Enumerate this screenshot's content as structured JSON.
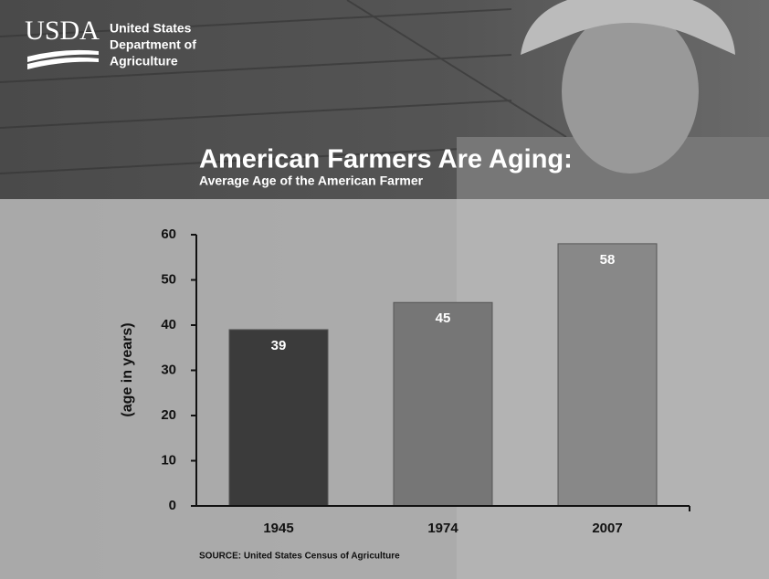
{
  "header": {
    "logo": "USDA",
    "agency": [
      "United States",
      "Department of",
      "Agriculture"
    ]
  },
  "chart_data": {
    "type": "bar",
    "title": "American Farmers Are Aging:",
    "subtitle": "Average Age of the American Farmer",
    "y_label": "(age in years)",
    "source": "SOURCE: United States Census of Agriculture",
    "categories": [
      "1945",
      "1974",
      "2007"
    ],
    "values": [
      39,
      45,
      58
    ],
    "colors": [
      "#3b3b3b",
      "#767676",
      "#888888"
    ],
    "ylim": [
      0,
      60
    ],
    "yticks": [
      0,
      10,
      20,
      30,
      40,
      50,
      60
    ]
  }
}
